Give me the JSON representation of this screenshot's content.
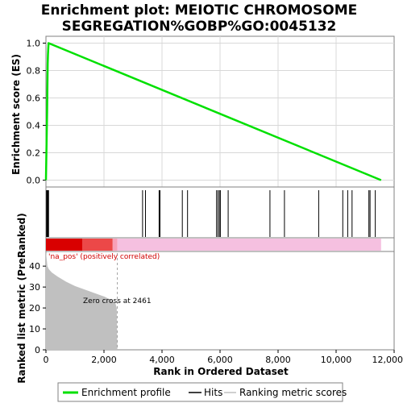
{
  "chart_data": {
    "type": "line",
    "title_lines": [
      "Enrichment plot: MEIOTIC CHROMOSOME",
      "SEGREGATION%GOBP%GO:0045132"
    ],
    "es_panel": {
      "ylabel": "Enrichment score (ES)",
      "ylim": [
        -0.05,
        1.05
      ],
      "yticks": [
        "0.0",
        "0.2",
        "0.4",
        "0.6",
        "0.8",
        "1.0"
      ],
      "grid": true,
      "series": [
        {
          "name": "Enrichment profile",
          "color": "#00e000",
          "x": [
            0,
            20,
            40,
            60,
            70,
            90,
            11550
          ],
          "y": [
            0.0,
            0.25,
            0.5,
            0.85,
            0.92,
            1.0,
            0.0
          ]
        }
      ]
    },
    "hits": [
      20,
      40,
      60,
      70,
      90,
      3330,
      3430,
      3900,
      3930,
      4700,
      4880,
      5880,
      5930,
      5980,
      6010,
      6280,
      7720,
      8220,
      9400,
      10230,
      10400,
      10550,
      11130,
      11170,
      11350
    ],
    "heatmap_bar": {
      "segments": [
        {
          "from": 0,
          "to": 1250,
          "color": "#d90000"
        },
        {
          "from": 1250,
          "to": 2300,
          "color": "#ec4848"
        },
        {
          "from": 2300,
          "to": 2461,
          "color": "#f8a0b8"
        },
        {
          "from": 2461,
          "to": 11550,
          "color": "#f5c0e0"
        }
      ],
      "positive_label": "'na_pos' (positively correlated)"
    },
    "metric_panel": {
      "ylabel": "Ranked list metric (PreRanked)",
      "ylim": [
        0,
        47
      ],
      "yticks": [
        "0",
        "10",
        "20",
        "30",
        "40"
      ],
      "fill_color": "#c0c0c0",
      "x": [
        0,
        50,
        100,
        200,
        400,
        700,
        1000,
        1500,
        2000,
        2300,
        2400,
        2440,
        2461
      ],
      "y": [
        47,
        40,
        38.5,
        37,
        35,
        32.5,
        30.5,
        28,
        25.5,
        23.5,
        22,
        20,
        0
      ],
      "zero_cross_label": "Zero cross at 2461",
      "zero_cross_x": 2461
    },
    "xlabel": "Rank in Ordered Dataset",
    "xlim": [
      0,
      12000
    ],
    "xticks": [
      {
        "value": 0,
        "label": "0"
      },
      {
        "value": 2000,
        "label": "2,000"
      },
      {
        "value": 4000,
        "label": "4,000"
      },
      {
        "value": 6000,
        "label": "6,000"
      },
      {
        "value": 8000,
        "label": "8,000"
      },
      {
        "value": 10000,
        "label": "10,000"
      },
      {
        "value": 12000,
        "label": "12,000"
      }
    ],
    "legend": {
      "placement": "bottom",
      "items": [
        {
          "label": "Enrichment profile",
          "color": "#00e000"
        },
        {
          "label": "Hits",
          "color": "#000000"
        },
        {
          "label": "Ranking metric scores",
          "color": "#c0c0c0"
        }
      ]
    }
  }
}
